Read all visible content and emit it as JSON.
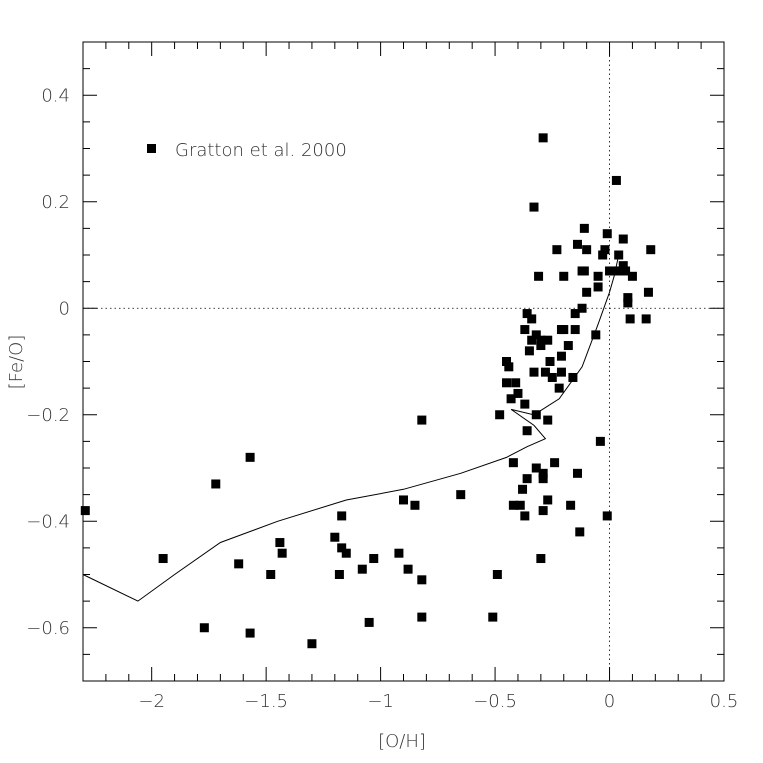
{
  "chart_data": {
    "type": "scatter",
    "title": "",
    "xlabel": "[O/H]",
    "ylabel": "[Fe/O]",
    "xlim": [
      -2.3,
      0.5
    ],
    "ylim": [
      -0.7,
      0.5
    ],
    "x_ticks": [
      -2,
      -1.5,
      -1,
      -0.5,
      0,
      0.5
    ],
    "x_tick_labels": [
      "−2",
      "−1.5",
      "−1",
      "−0.5",
      "0",
      "0.5"
    ],
    "y_ticks": [
      -0.6,
      -0.4,
      -0.2,
      0,
      0.2,
      0.4
    ],
    "y_tick_labels": [
      "−0.6",
      "−0.4",
      "−0.2",
      "0",
      "0.2",
      "0.4"
    ],
    "reference_lines": {
      "x": 0,
      "y": 0,
      "style": "dotted"
    },
    "legend": {
      "position": "top-left",
      "entries": [
        {
          "label": "Gratton et al. 2000",
          "marker": "filled-square"
        }
      ]
    },
    "series": [
      {
        "name": "Gratton et al. 2000",
        "type": "scatter",
        "marker": "filled-square",
        "color": "#000000",
        "points": [
          [
            -2.29,
            -0.38
          ],
          [
            -1.95,
            -0.47
          ],
          [
            -1.72,
            -0.33
          ],
          [
            -1.77,
            -0.6
          ],
          [
            -1.57,
            -0.61
          ],
          [
            -1.62,
            -0.48
          ],
          [
            -1.57,
            -0.28
          ],
          [
            -1.48,
            -0.5
          ],
          [
            -1.44,
            -0.44
          ],
          [
            -1.43,
            -0.46
          ],
          [
            -1.3,
            -0.63
          ],
          [
            -1.2,
            -0.43
          ],
          [
            -1.17,
            -0.39
          ],
          [
            -1.17,
            -0.45
          ],
          [
            -1.15,
            -0.46
          ],
          [
            -1.18,
            -0.5
          ],
          [
            -1.08,
            -0.49
          ],
          [
            -1.05,
            -0.59
          ],
          [
            -1.03,
            -0.47
          ],
          [
            -0.92,
            -0.46
          ],
          [
            -0.9,
            -0.36
          ],
          [
            -0.88,
            -0.49
          ],
          [
            -0.85,
            -0.37
          ],
          [
            -0.82,
            -0.51
          ],
          [
            -0.82,
            -0.58
          ],
          [
            -0.82,
            -0.21
          ],
          [
            -0.65,
            -0.35
          ],
          [
            -0.51,
            -0.58
          ],
          [
            -0.49,
            -0.5
          ],
          [
            -0.48,
            -0.2
          ],
          [
            -0.45,
            -0.1
          ],
          [
            -0.44,
            -0.11
          ],
          [
            -0.45,
            -0.14
          ],
          [
            -0.43,
            -0.17
          ],
          [
            -0.41,
            -0.14
          ],
          [
            -0.42,
            -0.29
          ],
          [
            -0.42,
            -0.37
          ],
          [
            -0.4,
            -0.16
          ],
          [
            -0.39,
            -0.37
          ],
          [
            -0.38,
            -0.34
          ],
          [
            -0.37,
            -0.39
          ],
          [
            -0.37,
            -0.18
          ],
          [
            -0.37,
            -0.04
          ],
          [
            -0.36,
            -0.01
          ],
          [
            -0.36,
            -0.32
          ],
          [
            -0.36,
            -0.23
          ],
          [
            -0.35,
            -0.08
          ],
          [
            -0.34,
            -0.06
          ],
          [
            -0.34,
            -0.02
          ],
          [
            -0.33,
            -0.12
          ],
          [
            -0.33,
            0.19
          ],
          [
            -0.32,
            -0.05
          ],
          [
            -0.32,
            -0.2
          ],
          [
            -0.32,
            -0.3
          ],
          [
            -0.31,
            0.06
          ],
          [
            -0.3,
            -0.06
          ],
          [
            -0.3,
            -0.07
          ],
          [
            -0.3,
            -0.47
          ],
          [
            -0.29,
            0.32
          ],
          [
            -0.29,
            -0.31
          ],
          [
            -0.29,
            -0.32
          ],
          [
            -0.29,
            -0.38
          ],
          [
            -0.28,
            -0.12
          ],
          [
            -0.27,
            -0.06
          ],
          [
            -0.27,
            -0.21
          ],
          [
            -0.27,
            -0.36
          ],
          [
            -0.26,
            -0.1
          ],
          [
            -0.25,
            -0.13
          ],
          [
            -0.24,
            -0.29
          ],
          [
            -0.23,
            0.11
          ],
          [
            -0.22,
            -0.15
          ],
          [
            -0.21,
            -0.04
          ],
          [
            -0.21,
            -0.12
          ],
          [
            -0.21,
            -0.09
          ],
          [
            -0.2,
            0.06
          ],
          [
            -0.2,
            -0.04
          ],
          [
            -0.18,
            -0.07
          ],
          [
            -0.17,
            -0.37
          ],
          [
            -0.16,
            -0.13
          ],
          [
            -0.15,
            -0.04
          ],
          [
            -0.15,
            -0.01
          ],
          [
            -0.14,
            -0.31
          ],
          [
            -0.14,
            0.12
          ],
          [
            -0.13,
            -0.42
          ],
          [
            -0.12,
            0.07
          ],
          [
            -0.12,
            0.0
          ],
          [
            -0.11,
            0.15
          ],
          [
            -0.11,
            0.07
          ],
          [
            -0.1,
            0.03
          ],
          [
            -0.1,
            0.11
          ],
          [
            -0.06,
            -0.05
          ],
          [
            -0.05,
            0.04
          ],
          [
            -0.05,
            0.06
          ],
          [
            -0.04,
            -0.25
          ],
          [
            -0.03,
            0.1
          ],
          [
            -0.02,
            0.11
          ],
          [
            -0.01,
            0.14
          ],
          [
            -0.01,
            -0.39
          ],
          [
            0.0,
            0.07
          ],
          [
            0.02,
            0.07
          ],
          [
            0.03,
            0.24
          ],
          [
            0.04,
            0.07
          ],
          [
            0.04,
            0.1
          ],
          [
            0.06,
            0.08
          ],
          [
            0.06,
            0.13
          ],
          [
            0.07,
            0.07
          ],
          [
            0.08,
            0.01
          ],
          [
            0.08,
            0.02
          ],
          [
            0.09,
            -0.02
          ],
          [
            0.1,
            0.06
          ],
          [
            0.16,
            -0.02
          ],
          [
            0.17,
            0.03
          ],
          [
            0.18,
            0.11
          ]
        ]
      },
      {
        "type": "line",
        "color": "#000000",
        "points": [
          [
            -2.3,
            -0.5
          ],
          [
            -2.06,
            -0.55
          ],
          [
            -1.9,
            -0.5
          ],
          [
            -1.7,
            -0.44
          ],
          [
            -1.45,
            -0.4
          ],
          [
            -1.15,
            -0.36
          ],
          [
            -0.9,
            -0.34
          ],
          [
            -0.65,
            -0.31
          ],
          [
            -0.45,
            -0.28
          ],
          [
            -0.36,
            -0.26
          ],
          [
            -0.28,
            -0.245
          ],
          [
            -0.33,
            -0.22
          ],
          [
            -0.43,
            -0.19
          ],
          [
            -0.33,
            -0.2
          ],
          [
            -0.22,
            -0.17
          ],
          [
            -0.12,
            -0.11
          ],
          [
            -0.05,
            -0.03
          ],
          [
            0.0,
            0.03
          ],
          [
            0.02,
            0.06
          ],
          [
            0.04,
            0.1
          ]
        ]
      }
    ]
  }
}
